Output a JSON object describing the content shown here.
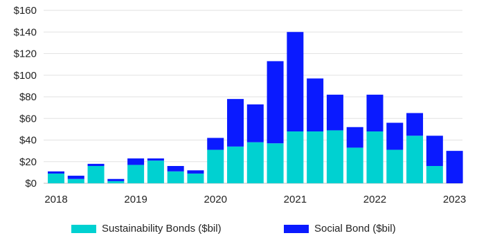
{
  "chart_data": {
    "type": "bar",
    "stacked": true,
    "categories": [
      "2018 Q1",
      "2018 Q2",
      "2018 Q3",
      "2018 Q4",
      "2019 Q1",
      "2019 Q2",
      "2019 Q3",
      "2019 Q4",
      "2020 Q1",
      "2020 Q2",
      "2020 Q3",
      "2020 Q4",
      "2021 Q1",
      "2021 Q2",
      "2021 Q3",
      "2021 Q4",
      "2022 Q1",
      "2022 Q2",
      "2022 Q3",
      "2022 Q4",
      "2023 Q1"
    ],
    "series": [
      {
        "name": "Sustainability Bonds ($bil)",
        "color": "#00d1d1",
        "values": [
          9,
          4,
          16,
          2,
          17,
          21,
          11,
          9,
          31,
          34,
          38,
          37,
          48,
          48,
          49,
          33,
          48,
          31,
          44,
          16,
          0
        ]
      },
      {
        "name": "Social Bond ($bil)",
        "color": "#0a1aff",
        "values": [
          2,
          3,
          2,
          2,
          6,
          2,
          5,
          3,
          11,
          44,
          35,
          76,
          92,
          49,
          33,
          19,
          34,
          25,
          21,
          28,
          30
        ]
      }
    ],
    "x_tick_labels": [
      "2018",
      "2019",
      "2020",
      "2021",
      "2022",
      "2023"
    ],
    "y_tick_labels": [
      "$0",
      "$20",
      "$40",
      "$60",
      "$80",
      "$100",
      "$120",
      "$140",
      "$160"
    ],
    "ylim": [
      0,
      160
    ],
    "y_ticks": [
      0,
      20,
      40,
      60,
      80,
      100,
      120,
      140,
      160
    ],
    "grid": true,
    "legend_position": "bottom",
    "title": "",
    "xlabel": "",
    "ylabel": ""
  }
}
